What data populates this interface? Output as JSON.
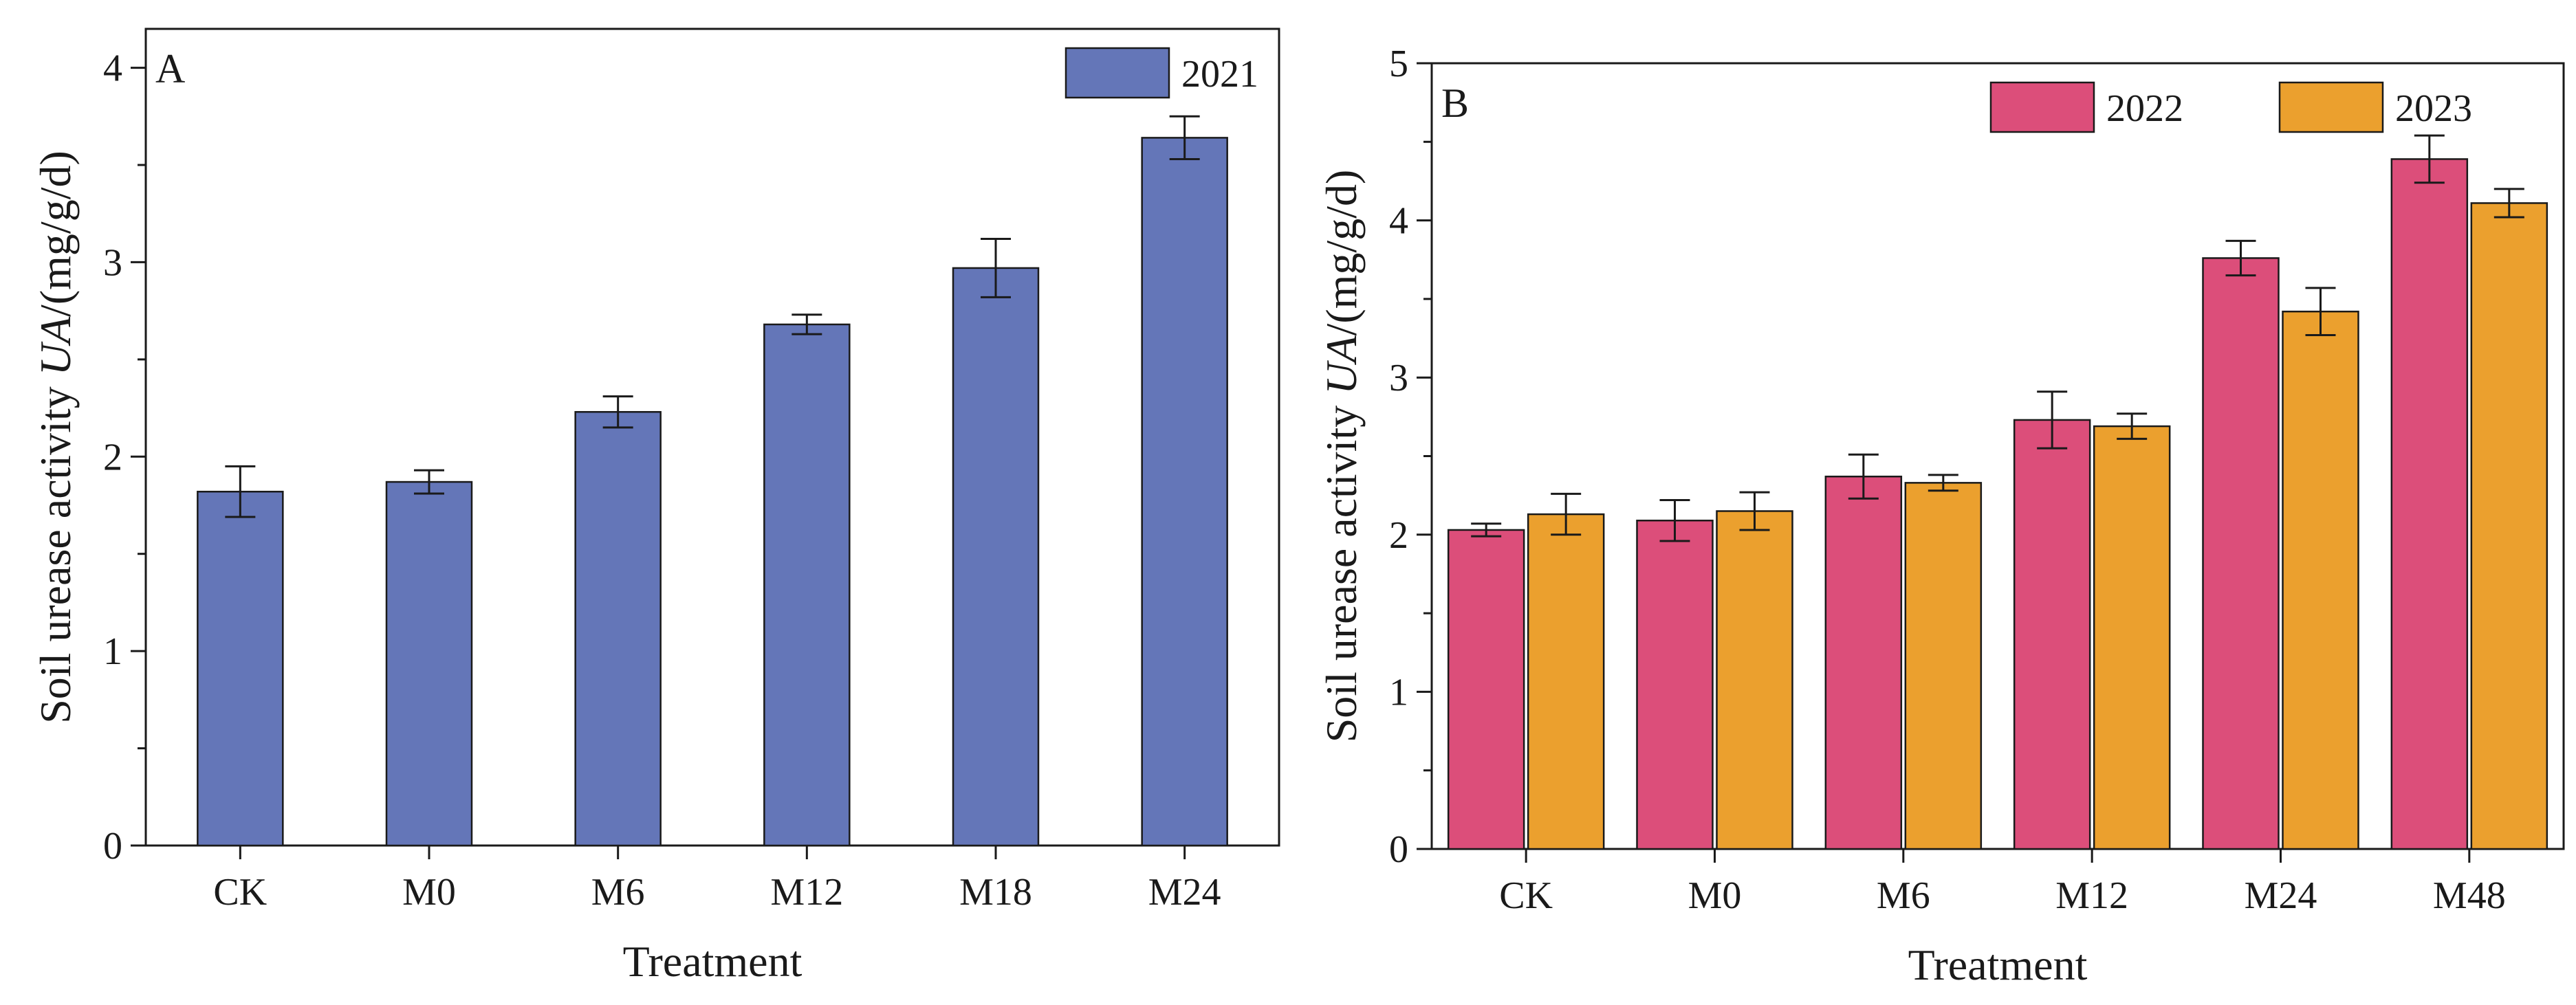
{
  "chart_data": [
    {
      "panel": "A",
      "type": "bar",
      "xlabel": "Treatment",
      "ylabel_prefix": "Soil urease activity ",
      "ylabel_italic": "UA",
      "ylabel_suffix": "/(mg/g/d)",
      "ylim": [
        0,
        4.2
      ],
      "yticks": [
        0,
        1,
        2,
        3,
        4
      ],
      "categories": [
        "CK",
        "M0",
        "M6",
        "M12",
        "M18",
        "M24"
      ],
      "legend_position": "top-right",
      "series": [
        {
          "name": "2021",
          "color": "#6476b8",
          "values": [
            1.82,
            1.87,
            2.23,
            2.68,
            2.97,
            3.64
          ],
          "errors": [
            0.13,
            0.06,
            0.08,
            0.05,
            0.15,
            0.11
          ]
        }
      ]
    },
    {
      "panel": "B",
      "type": "bar",
      "xlabel": "Treatment",
      "ylabel_prefix": "Soil urease activity ",
      "ylabel_italic": "UA",
      "ylabel_suffix": "/(mg/g/d)",
      "ylim": [
        0,
        5
      ],
      "yticks": [
        0,
        1,
        2,
        3,
        4,
        5
      ],
      "categories": [
        "CK",
        "M0",
        "M6",
        "M12",
        "M24",
        "M48"
      ],
      "legend_position": "top-right",
      "series": [
        {
          "name": "2022",
          "color": "#dc4e7a",
          "values": [
            2.03,
            2.09,
            2.37,
            2.73,
            3.76,
            4.39
          ],
          "errors": [
            0.04,
            0.13,
            0.14,
            0.18,
            0.11,
            0.15
          ]
        },
        {
          "name": "2023",
          "color": "#eba02e",
          "values": [
            2.13,
            2.15,
            2.33,
            2.69,
            3.42,
            4.11
          ],
          "errors": [
            0.13,
            0.12,
            0.05,
            0.08,
            0.15,
            0.09
          ]
        }
      ]
    }
  ]
}
